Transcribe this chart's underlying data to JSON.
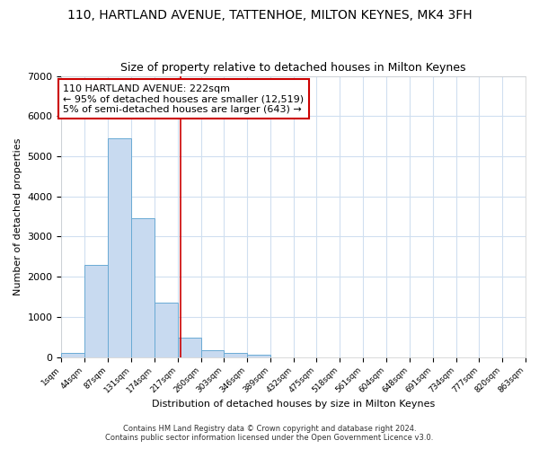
{
  "title": "110, HARTLAND AVENUE, TATTENHOE, MILTON KEYNES, MK4 3FH",
  "subtitle": "Size of property relative to detached houses in Milton Keynes",
  "xlabel": "Distribution of detached houses by size in Milton Keynes",
  "ylabel": "Number of detached properties",
  "bar_color": "#c8daf0",
  "bar_edge_color": "#6aaad4",
  "bar_values": [
    100,
    2300,
    5450,
    3450,
    1350,
    475,
    175,
    100,
    60,
    0,
    0,
    0,
    0,
    0,
    0,
    0,
    0,
    0,
    0,
    0
  ],
  "bin_edges": [
    1,
    44,
    87,
    131,
    174,
    217,
    260,
    303,
    346,
    389,
    432,
    475,
    518,
    561,
    604,
    648,
    691,
    734,
    777,
    820,
    863
  ],
  "x_labels": [
    "1sqm",
    "44sqm",
    "87sqm",
    "131sqm",
    "174sqm",
    "217sqm",
    "260sqm",
    "303sqm",
    "346sqm",
    "389sqm",
    "432sqm",
    "475sqm",
    "518sqm",
    "561sqm",
    "604sqm",
    "648sqm",
    "691sqm",
    "734sqm",
    "777sqm",
    "820sqm",
    "863sqm"
  ],
  "red_line_x": 222,
  "annotation_line1": "110 HARTLAND AVENUE: 222sqm",
  "annotation_line2": "← 95% of detached houses are smaller (12,519)",
  "annotation_line3": "5% of semi-detached houses are larger (643) →",
  "annotation_box_color": "#ffffff",
  "annotation_box_edge": "#cc0000",
  "red_line_color": "#cc0000",
  "ylim": [
    0,
    7000
  ],
  "grid_color": "#d0dff0",
  "footer1": "Contains HM Land Registry data © Crown copyright and database right 2024.",
  "footer2": "Contains public sector information licensed under the Open Government Licence v3.0.",
  "title_fontsize": 10,
  "subtitle_fontsize": 9,
  "background_color": "#ffffff"
}
